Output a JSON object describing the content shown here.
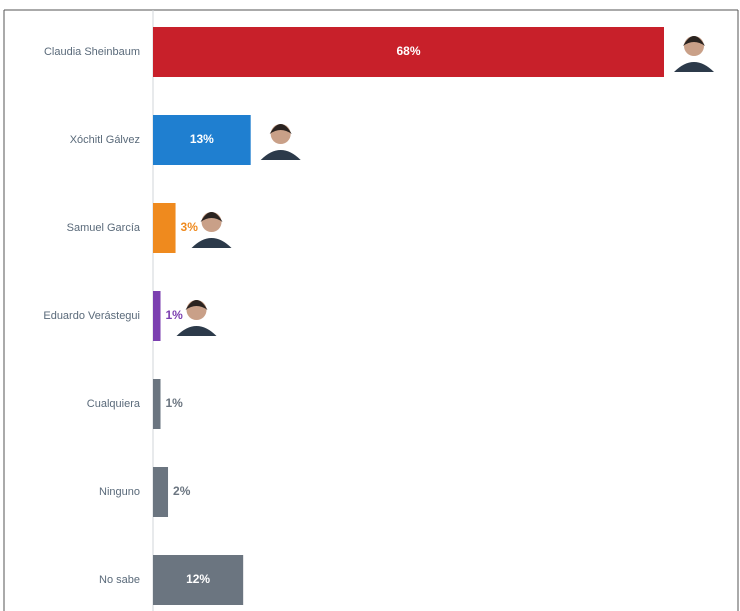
{
  "chart_data": {
    "type": "bar",
    "orientation": "horizontal",
    "categories": [
      "Claudia Sheinbaum",
      "Xóchitl Gálvez",
      "Samuel García",
      "Eduardo Verástegui",
      "Cualquiera",
      "Ninguno",
      "No sabe"
    ],
    "values": [
      68,
      13,
      3,
      1,
      1,
      2,
      12
    ],
    "value_labels": [
      "68%",
      "13%",
      "3%",
      "1%",
      "1%",
      "2%",
      "12%"
    ],
    "colors": [
      "#c8202a",
      "#1f7fd0",
      "#ef8a1e",
      "#7b3fb0",
      "#6b7580",
      "#6b7580",
      "#6b7580"
    ]
  }
}
